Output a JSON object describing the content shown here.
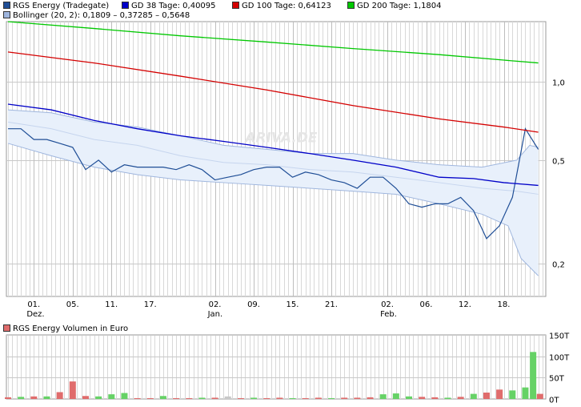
{
  "chart_data": [
    {
      "type": "line",
      "y_scale": "log",
      "ylim": [
        0.15,
        1.7
      ],
      "x_range": [
        0,
        124
      ],
      "grid": true,
      "watermark": "ARIVA.DE",
      "legend": [
        {
          "text": "RGS Energy (Tradegate)",
          "color": "#1f4e96"
        },
        {
          "text": "GD 38 Tage: 0,40095",
          "color": "#0000c8"
        },
        {
          "text": "GD 100 Tage: 0,64123",
          "color": "#d40000"
        },
        {
          "text": "GD 200 Tage: 1,1804",
          "color": "#00c800"
        },
        {
          "text": "Bollinger (20, 2): 0,1809 – 0,37285 – 0,5648",
          "color": "#9fb6de"
        }
      ],
      "y_ticks": [
        {
          "value": 1.0,
          "label": "1,0"
        },
        {
          "value": 0.5,
          "label": "0,5"
        },
        {
          "value": 0.2,
          "label": "0,2"
        }
      ],
      "x_ticks": [
        {
          "x": 6,
          "label": "01.",
          "sub": "Dez."
        },
        {
          "x": 15,
          "label": "05.",
          "sub": ""
        },
        {
          "x": 24,
          "label": "11.",
          "sub": ""
        },
        {
          "x": 33,
          "label": "17.",
          "sub": ""
        },
        {
          "x": 48,
          "label": "02.",
          "sub": "Jan."
        },
        {
          "x": 57,
          "label": "09.",
          "sub": ""
        },
        {
          "x": 66,
          "label": "15.",
          "sub": ""
        },
        {
          "x": 75,
          "label": "21.",
          "sub": ""
        },
        {
          "x": 88,
          "label": "02.",
          "sub": "Feb."
        },
        {
          "x": 97,
          "label": "06.",
          "sub": ""
        },
        {
          "x": 106,
          "label": "12.",
          "sub": ""
        },
        {
          "x": 115,
          "label": "18.",
          "sub": ""
        }
      ],
      "series": [
        {
          "name": "RGS Energy (Tradegate)",
          "color": "#1f4e96",
          "points": [
            [
              0,
              0.66
            ],
            [
              3,
              0.66
            ],
            [
              6,
              0.6
            ],
            [
              9,
              0.6
            ],
            [
              12,
              0.58
            ],
            [
              15,
              0.56
            ],
            [
              18,
              0.46
            ],
            [
              21,
              0.5
            ],
            [
              24,
              0.45
            ],
            [
              27,
              0.48
            ],
            [
              30,
              0.47
            ],
            [
              33,
              0.47
            ],
            [
              36,
              0.47
            ],
            [
              39,
              0.46
            ],
            [
              42,
              0.48
            ],
            [
              45,
              0.46
            ],
            [
              48,
              0.42
            ],
            [
              51,
              0.43
            ],
            [
              54,
              0.44
            ],
            [
              57,
              0.46
            ],
            [
              60,
              0.47
            ],
            [
              63,
              0.47
            ],
            [
              66,
              0.43
            ],
            [
              69,
              0.45
            ],
            [
              72,
              0.44
            ],
            [
              75,
              0.42
            ],
            [
              78,
              0.41
            ],
            [
              81,
              0.39
            ],
            [
              84,
              0.43
            ],
            [
              87,
              0.43
            ],
            [
              90,
              0.39
            ],
            [
              93,
              0.34
            ],
            [
              96,
              0.33
            ],
            [
              99,
              0.34
            ],
            [
              102,
              0.34
            ],
            [
              105,
              0.36
            ],
            [
              108,
              0.32
            ],
            [
              111,
              0.25
            ],
            [
              114,
              0.28
            ],
            [
              117,
              0.36
            ],
            [
              120,
              0.66
            ],
            [
              123,
              0.55
            ]
          ]
        },
        {
          "name": "GD 38 Tage: 0,40095",
          "color": "#0000c8",
          "points": [
            [
              0,
              0.82
            ],
            [
              10,
              0.78
            ],
            [
              20,
              0.71
            ],
            [
              30,
              0.66
            ],
            [
              40,
              0.62
            ],
            [
              50,
              0.59
            ],
            [
              60,
              0.56
            ],
            [
              70,
              0.53
            ],
            [
              80,
              0.5
            ],
            [
              90,
              0.47
            ],
            [
              100,
              0.43
            ],
            [
              108,
              0.425
            ],
            [
              115,
              0.41
            ],
            [
              123,
              0.4
            ]
          ]
        },
        {
          "name": "GD 100 Tage: 0,64123",
          "color": "#d40000",
          "points": [
            [
              0,
              1.3
            ],
            [
              20,
              1.18
            ],
            [
              40,
              1.05
            ],
            [
              60,
              0.93
            ],
            [
              80,
              0.81
            ],
            [
              100,
              0.72
            ],
            [
              115,
              0.67
            ],
            [
              123,
              0.64
            ]
          ]
        },
        {
          "name": "GD 200 Tage: 1,1804",
          "color": "#00c800",
          "points": [
            [
              0,
              1.7
            ],
            [
              20,
              1.6
            ],
            [
              40,
              1.5
            ],
            [
              60,
              1.42
            ],
            [
              80,
              1.34
            ],
            [
              100,
              1.27
            ],
            [
              115,
              1.21
            ],
            [
              123,
              1.18
            ]
          ]
        },
        {
          "name": "Bollinger (20, 2): 0,1809 – 0,37285 – 0,5648",
          "color": "#9fb6de",
          "role": "band",
          "upper": [
            [
              0,
              0.78
            ],
            [
              10,
              0.76
            ],
            [
              20,
              0.7
            ],
            [
              30,
              0.67
            ],
            [
              40,
              0.62
            ],
            [
              50,
              0.57
            ],
            [
              60,
              0.55
            ],
            [
              70,
              0.53
            ],
            [
              80,
              0.53
            ],
            [
              90,
              0.5
            ],
            [
              100,
              0.48
            ],
            [
              110,
              0.47
            ],
            [
              118,
              0.5
            ],
            [
              121,
              0.57
            ],
            [
              123,
              0.56
            ]
          ],
          "middle": [
            [
              0,
              0.7
            ],
            [
              10,
              0.66
            ],
            [
              20,
              0.6
            ],
            [
              30,
              0.57
            ],
            [
              40,
              0.52
            ],
            [
              50,
              0.49
            ],
            [
              60,
              0.48
            ],
            [
              70,
              0.46
            ],
            [
              80,
              0.45
            ],
            [
              90,
              0.43
            ],
            [
              100,
              0.41
            ],
            [
              110,
              0.39
            ],
            [
              118,
              0.38
            ],
            [
              123,
              0.37
            ]
          ],
          "lower": [
            [
              0,
              0.58
            ],
            [
              10,
              0.52
            ],
            [
              20,
              0.47
            ],
            [
              30,
              0.44
            ],
            [
              40,
              0.42
            ],
            [
              50,
              0.41
            ],
            [
              60,
              0.4
            ],
            [
              70,
              0.39
            ],
            [
              80,
              0.38
            ],
            [
              90,
              0.37
            ],
            [
              100,
              0.34
            ],
            [
              110,
              0.31
            ],
            [
              116,
              0.28
            ],
            [
              119,
              0.21
            ],
            [
              123,
              0.18
            ]
          ]
        }
      ]
    },
    {
      "type": "bar",
      "legend": [
        {
          "text": "RGS Energy Volumen in Euro",
          "color": "#e06c6c"
        }
      ],
      "ylim": [
        0,
        150
      ],
      "y_ticks": [
        {
          "value": 150,
          "label": "150T"
        },
        {
          "value": 100,
          "label": "100T"
        },
        {
          "value": 50,
          "label": "50T"
        },
        {
          "value": 0,
          "label": "0T"
        }
      ],
      "colors": {
        "up": "#66d266",
        "down": "#e06c6c",
        "neutral": "#c8c8c8"
      },
      "bars": [
        {
          "x": 0,
          "value": 4,
          "dir": "down"
        },
        {
          "x": 3,
          "value": 5,
          "dir": "up"
        },
        {
          "x": 6,
          "value": 6,
          "dir": "down"
        },
        {
          "x": 9,
          "value": 6,
          "dir": "up"
        },
        {
          "x": 12,
          "value": 16,
          "dir": "down"
        },
        {
          "x": 15,
          "value": 41,
          "dir": "down"
        },
        {
          "x": 18,
          "value": 7,
          "dir": "down"
        },
        {
          "x": 21,
          "value": 6,
          "dir": "up"
        },
        {
          "x": 24,
          "value": 11,
          "dir": "up"
        },
        {
          "x": 27,
          "value": 14,
          "dir": "up"
        },
        {
          "x": 30,
          "value": 2,
          "dir": "down"
        },
        {
          "x": 33,
          "value": 2,
          "dir": "down"
        },
        {
          "x": 36,
          "value": 7,
          "dir": "up"
        },
        {
          "x": 39,
          "value": 2,
          "dir": "down"
        },
        {
          "x": 42,
          "value": 2,
          "dir": "down"
        },
        {
          "x": 45,
          "value": 3,
          "dir": "up"
        },
        {
          "x": 48,
          "value": 3,
          "dir": "down"
        },
        {
          "x": 51,
          "value": 6,
          "dir": "neutral"
        },
        {
          "x": 54,
          "value": 2,
          "dir": "down"
        },
        {
          "x": 57,
          "value": 3,
          "dir": "up"
        },
        {
          "x": 60,
          "value": 2,
          "dir": "down"
        },
        {
          "x": 63,
          "value": 3,
          "dir": "down"
        },
        {
          "x": 66,
          "value": 2,
          "dir": "up"
        },
        {
          "x": 69,
          "value": 2,
          "dir": "down"
        },
        {
          "x": 72,
          "value": 3,
          "dir": "down"
        },
        {
          "x": 75,
          "value": 2,
          "dir": "up"
        },
        {
          "x": 78,
          "value": 3,
          "dir": "down"
        },
        {
          "x": 81,
          "value": 3,
          "dir": "down"
        },
        {
          "x": 84,
          "value": 4,
          "dir": "down"
        },
        {
          "x": 87,
          "value": 11,
          "dir": "up"
        },
        {
          "x": 90,
          "value": 13,
          "dir": "up"
        },
        {
          "x": 93,
          "value": 6,
          "dir": "up"
        },
        {
          "x": 96,
          "value": 5,
          "dir": "down"
        },
        {
          "x": 99,
          "value": 4,
          "dir": "down"
        },
        {
          "x": 102,
          "value": 3,
          "dir": "up"
        },
        {
          "x": 105,
          "value": 5,
          "dir": "down"
        },
        {
          "x": 108,
          "value": 12,
          "dir": "up"
        },
        {
          "x": 111,
          "value": 15,
          "dir": "down"
        },
        {
          "x": 114,
          "value": 22,
          "dir": "down"
        },
        {
          "x": 117,
          "value": 20,
          "dir": "up"
        },
        {
          "x": 120,
          "value": 27,
          "dir": "up"
        },
        {
          "x": 121.8,
          "value": 110,
          "dir": "up"
        },
        {
          "x": 123.4,
          "value": 12,
          "dir": "down"
        }
      ]
    }
  ]
}
